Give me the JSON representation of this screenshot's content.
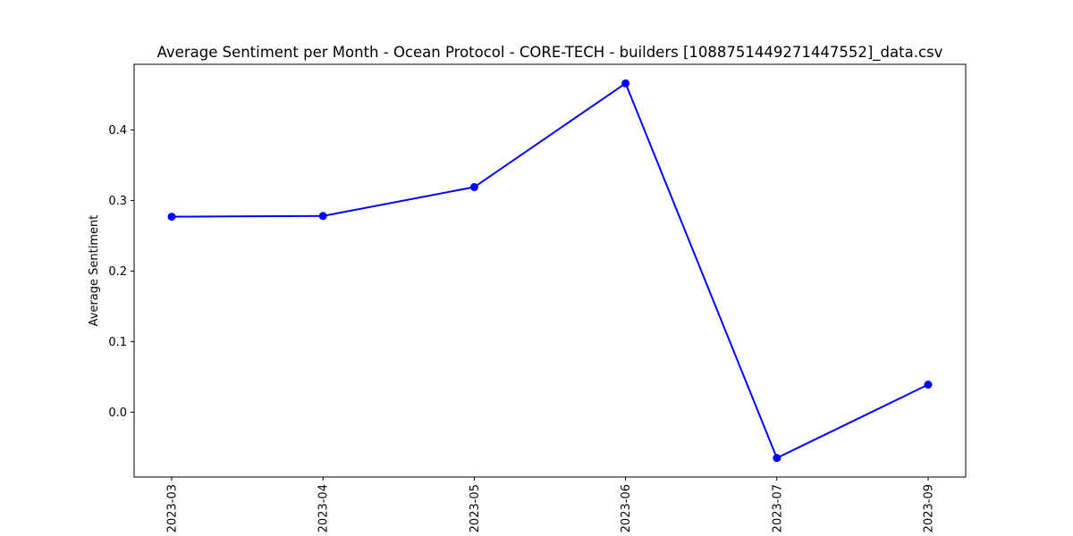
{
  "chart_data": {
    "type": "line",
    "title": "Average Sentiment per Month - Ocean Protocol - CORE-TECH - builders [1088751449271447552]_data.csv",
    "xlabel": "",
    "ylabel": "Average Sentiment",
    "categories": [
      "2023-03",
      "2023-04",
      "2023-05",
      "2023-06",
      "2023-07",
      "2023-09"
    ],
    "series": [
      {
        "name": "Average Sentiment",
        "values": [
          0.277,
          0.278,
          0.319,
          0.466,
          -0.065,
          0.039
        ],
        "color": "#0000ff",
        "marker": "circle"
      }
    ],
    "yticks": [
      0.0,
      0.1,
      0.2,
      0.3,
      0.4
    ],
    "ytick_labels": [
      "0.0",
      "0.1",
      "0.2",
      "0.3",
      "0.4"
    ],
    "ylim": [
      -0.092,
      0.493
    ],
    "grid": false,
    "legend": "none"
  }
}
